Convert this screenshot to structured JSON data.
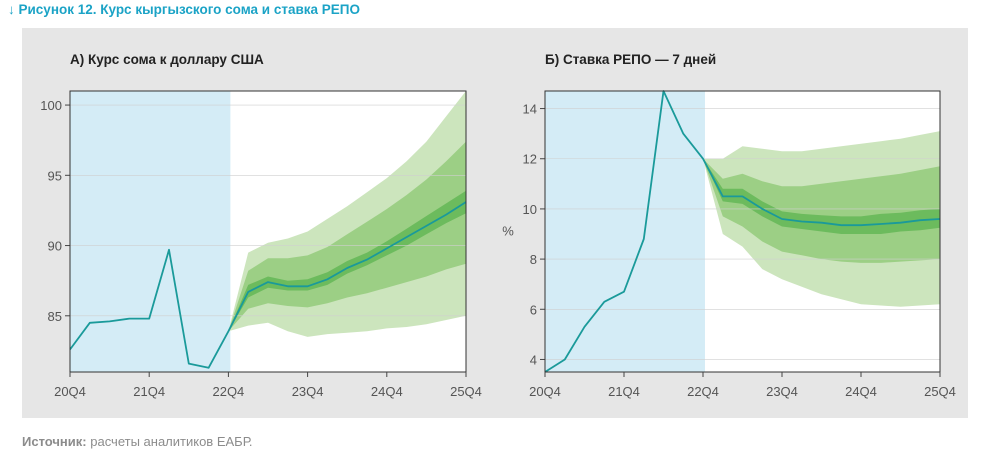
{
  "figure_title": "↓ Рисунок 12. Курс кыргызского сома и ставка РЕПО",
  "source_label": "Источник:",
  "source_text": " расчеты аналитиков ЕАБР.",
  "colors": {
    "title": "#1ba3c6",
    "line": "#1a9a9a",
    "shade": "#d4ecf6",
    "band_outer": "#cce5bd",
    "band_mid": "#9ccf85",
    "band_inner": "#6cbb5d"
  },
  "chart_data": [
    {
      "type": "line",
      "title": "А) Курс сома к доллару США",
      "ylabel": "",
      "x_ticks": [
        "20Q4",
        "21Q4",
        "22Q4",
        "23Q4",
        "24Q4",
        "25Q4"
      ],
      "y_ticks": [
        85,
        90,
        95,
        100
      ],
      "xlim": [
        0,
        20
      ],
      "ylim": [
        81,
        101
      ],
      "shaded_history": [
        0,
        8.1
      ],
      "series": [
        {
          "x": [
            0,
            1,
            2,
            3,
            4,
            5,
            6,
            7,
            8,
            9,
            10,
            11,
            12,
            13,
            14,
            15,
            16,
            17,
            18,
            19,
            20
          ],
          "values": [
            82.6,
            84.5,
            84.6,
            84.8,
            84.8,
            89.7,
            81.6,
            81.3,
            83.9,
            86.7,
            87.4,
            87.1,
            87.1,
            87.6,
            88.4,
            89.0,
            89.8,
            90.6,
            91.4,
            92.2,
            93.1
          ]
        }
      ],
      "fan": {
        "x": [
          8,
          9,
          10,
          11,
          12,
          13,
          14,
          15,
          16,
          17,
          18,
          19,
          20
        ],
        "outer_lo": [
          83.9,
          84.3,
          84.5,
          83.9,
          83.5,
          83.7,
          83.8,
          83.9,
          84.1,
          84.2,
          84.4,
          84.7,
          85.0
        ],
        "outer_hi": [
          83.9,
          89.5,
          90.2,
          90.5,
          91.0,
          91.9,
          92.8,
          93.8,
          94.8,
          96.0,
          97.4,
          99.2,
          101.0
        ],
        "mid_lo": [
          83.9,
          85.5,
          85.9,
          85.7,
          85.6,
          85.9,
          86.3,
          86.6,
          87.0,
          87.4,
          87.8,
          88.3,
          88.7
        ],
        "mid_hi": [
          83.9,
          88.2,
          89.1,
          89.1,
          89.3,
          89.9,
          90.8,
          91.7,
          92.6,
          93.6,
          94.7,
          96.0,
          97.4
        ],
        "inner_lo": [
          83.9,
          86.3,
          87.0,
          86.8,
          86.8,
          87.2,
          88.0,
          88.6,
          89.3,
          90.0,
          90.8,
          91.6,
          92.3
        ],
        "inner_hi": [
          83.9,
          87.2,
          87.8,
          87.5,
          87.6,
          88.1,
          88.9,
          89.5,
          90.3,
          91.2,
          92.1,
          93.0,
          93.9
        ]
      }
    },
    {
      "type": "line",
      "title": "Б) Ставка РЕПО — 7 дней",
      "ylabel": "%",
      "x_ticks": [
        "20Q4",
        "21Q4",
        "22Q4",
        "23Q4",
        "24Q4",
        "25Q4"
      ],
      "y_ticks": [
        4,
        6,
        8,
        10,
        12,
        14
      ],
      "xlim": [
        0,
        20
      ],
      "ylim": [
        3.5,
        14.7
      ],
      "shaded_history": [
        0,
        8.1
      ],
      "series": [
        {
          "x": [
            0,
            1,
            2,
            3,
            4,
            5,
            6,
            7,
            8,
            9,
            10,
            11,
            12,
            13,
            14,
            15,
            16,
            17,
            18,
            19,
            20
          ],
          "values": [
            3.5,
            4.0,
            5.3,
            6.3,
            6.7,
            8.8,
            14.7,
            13.0,
            12.0,
            10.5,
            10.5,
            10.0,
            9.6,
            9.5,
            9.45,
            9.35,
            9.35,
            9.4,
            9.45,
            9.55,
            9.6
          ]
        }
      ],
      "fan": {
        "x": [
          8,
          9,
          10,
          11,
          12,
          13,
          14,
          15,
          16,
          17,
          18,
          19,
          20
        ],
        "outer_lo": [
          12.0,
          9.0,
          8.5,
          7.6,
          7.2,
          6.9,
          6.6,
          6.4,
          6.2,
          6.15,
          6.1,
          6.15,
          6.2
        ],
        "outer_hi": [
          12.0,
          12.0,
          12.5,
          12.4,
          12.3,
          12.3,
          12.4,
          12.5,
          12.6,
          12.7,
          12.8,
          12.95,
          13.1
        ],
        "mid_lo": [
          12.0,
          9.7,
          9.3,
          8.7,
          8.3,
          8.15,
          8.0,
          7.9,
          7.85,
          7.85,
          7.9,
          7.95,
          8.0
        ],
        "mid_hi": [
          12.0,
          11.2,
          11.4,
          11.1,
          10.9,
          10.9,
          11.0,
          11.1,
          11.2,
          11.3,
          11.4,
          11.55,
          11.7
        ],
        "inner_lo": [
          12.0,
          10.3,
          10.2,
          9.7,
          9.3,
          9.2,
          9.1,
          9.0,
          9.0,
          9.0,
          9.1,
          9.15,
          9.25
        ],
        "inner_hi": [
          12.0,
          10.8,
          10.8,
          10.3,
          9.9,
          9.8,
          9.75,
          9.7,
          9.7,
          9.8,
          9.85,
          9.95,
          10.0
        ]
      }
    }
  ]
}
